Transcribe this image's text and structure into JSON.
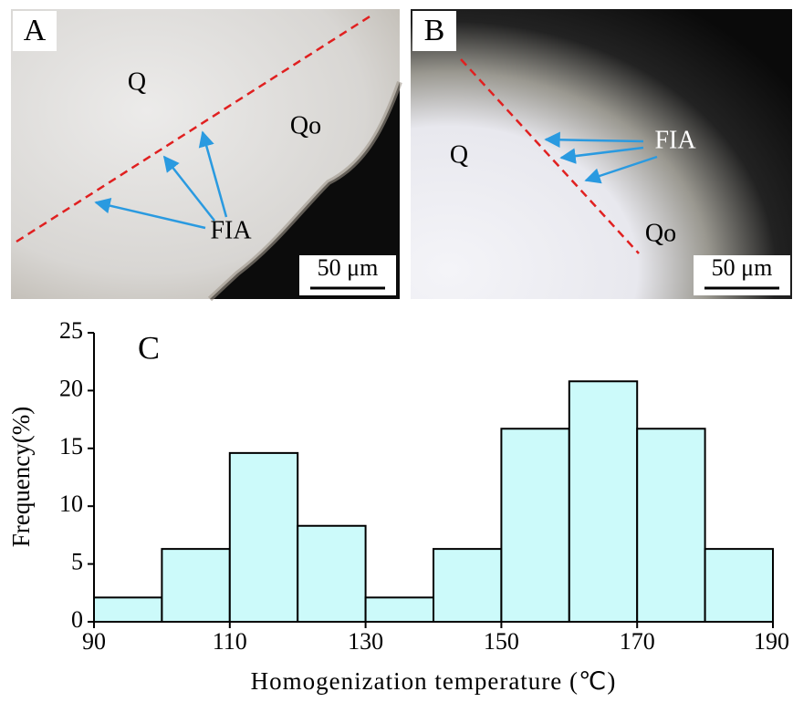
{
  "panels": [
    {
      "label": "A",
      "annotations": [
        "Q",
        "Qo",
        "FIA"
      ],
      "scale_bar": "50 μm"
    },
    {
      "label": "B",
      "annotations": [
        "Q",
        "Qo",
        "FIA"
      ],
      "scale_bar": "50 μm"
    }
  ],
  "chart_data": {
    "type": "histogram",
    "panel_label": "C",
    "bins": [
      90,
      100,
      110,
      120,
      130,
      140,
      150,
      160,
      170,
      180,
      190
    ],
    "values": [
      2.1,
      6.3,
      14.6,
      8.3,
      2.1,
      6.3,
      16.7,
      20.8,
      16.7,
      6.3
    ],
    "color": "#ccfafa",
    "xlabel": "Homogenization temperature (℃)",
    "ylabel": "Frequency(%)",
    "xlim": [
      90,
      190
    ],
    "ylim": [
      0,
      25
    ],
    "xticks": [
      90,
      110,
      130,
      150,
      170,
      190
    ],
    "yticks": [
      0,
      5,
      10,
      15,
      20,
      25
    ]
  }
}
